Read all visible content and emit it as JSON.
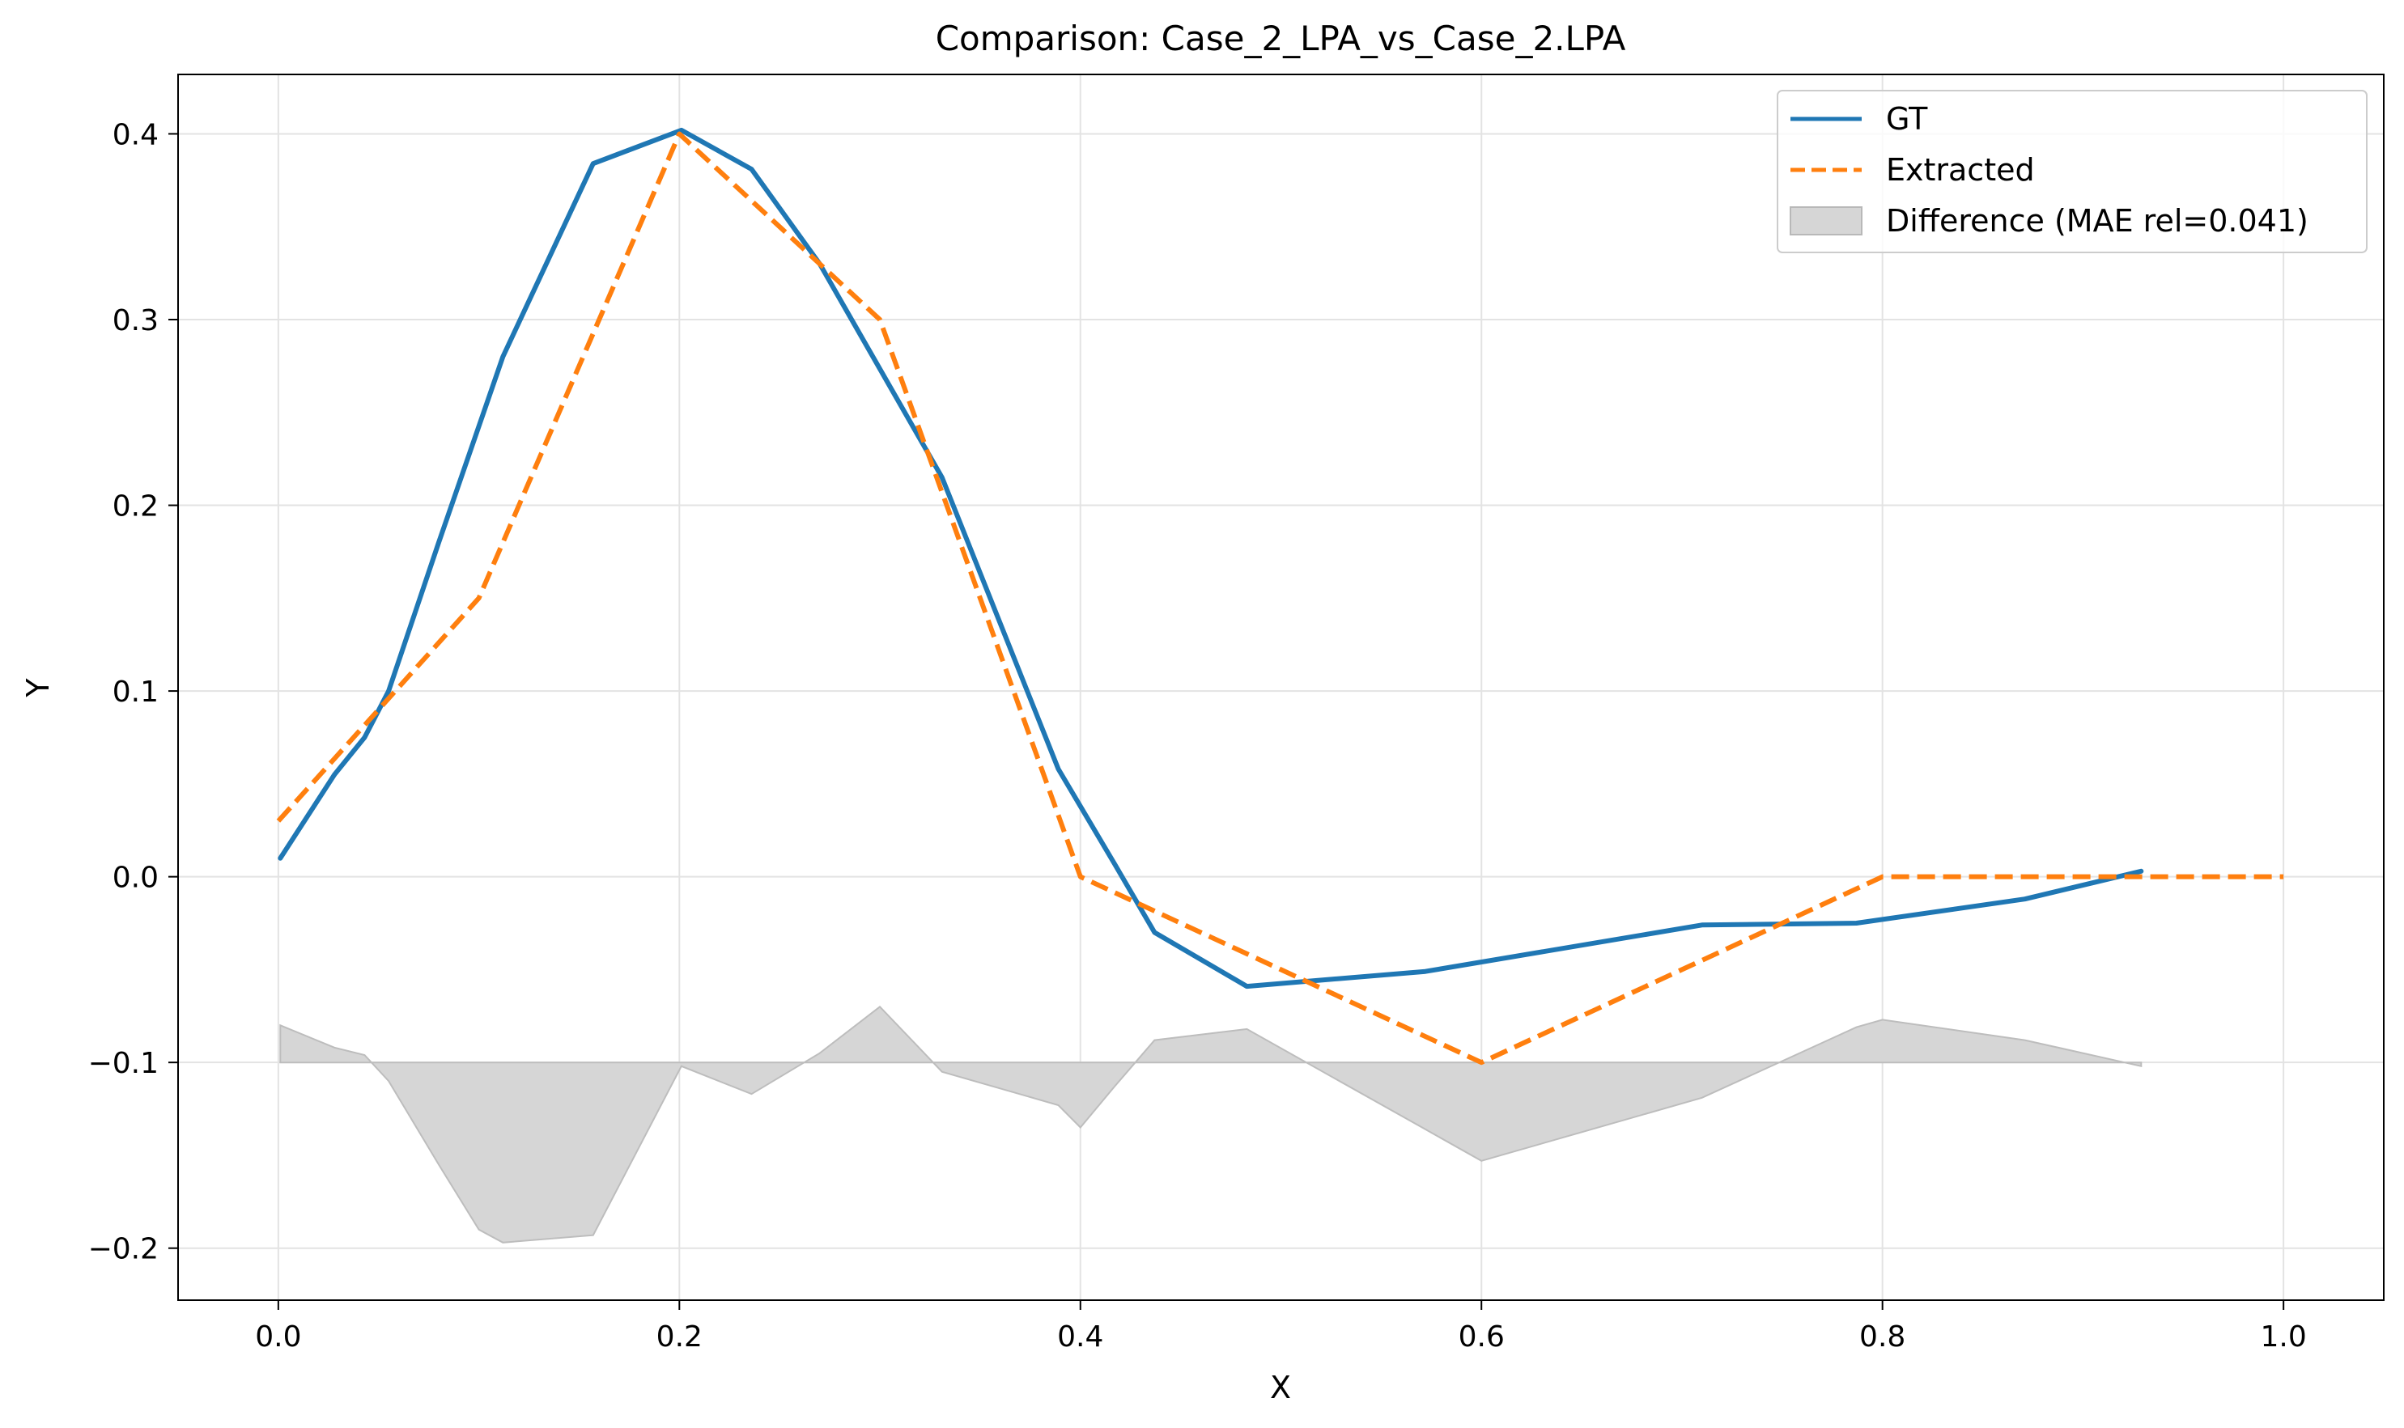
{
  "chart_data": {
    "type": "line",
    "title": "Comparison: Case_2_LPA_vs_Case_2.LPA",
    "xlabel": "X",
    "ylabel": "Y",
    "xlim": [
      -0.05,
      1.05
    ],
    "ylim": [
      -0.228,
      0.432
    ],
    "grid": true,
    "legend_position": "top-right",
    "x_ticks": [
      0.0,
      0.2,
      0.4,
      0.6,
      0.8,
      1.0
    ],
    "x_tick_labels": [
      "0.0",
      "0.2",
      "0.4",
      "0.6",
      "0.8",
      "1.0"
    ],
    "y_ticks": [
      -0.2,
      -0.1,
      0.0,
      0.1,
      0.2,
      0.3,
      0.4
    ],
    "y_tick_labels": [
      "−0.2",
      "−0.1",
      "0.0",
      "0.1",
      "0.2",
      "0.3",
      "0.4"
    ],
    "series": [
      {
        "name": "GT",
        "style": "solid",
        "color": "#1f77b4",
        "x": [
          0.001,
          0.028,
          0.043,
          0.055,
          0.08,
          0.112,
          0.157,
          0.201,
          0.236,
          0.27,
          0.331,
          0.389,
          0.417,
          0.437,
          0.483,
          0.572,
          0.71,
          0.787,
          0.871,
          0.929
        ],
        "y": [
          0.01,
          0.055,
          0.075,
          0.1,
          0.18,
          0.28,
          0.384,
          0.402,
          0.381,
          0.33,
          0.215,
          0.058,
          0.007,
          -0.03,
          -0.059,
          -0.051,
          -0.026,
          -0.025,
          -0.012,
          0.003
        ]
      },
      {
        "name": "Extracted",
        "style": "dashed",
        "color": "#ff7f0e",
        "x": [
          0.0,
          0.1,
          0.2,
          0.3,
          0.4,
          0.5,
          0.6,
          0.7,
          0.8,
          0.9,
          1.0
        ],
        "y": [
          0.03,
          0.15,
          0.4,
          0.3,
          0.0,
          -0.05,
          -0.1,
          -0.05,
          0.0,
          0.0,
          0.0
        ]
      }
    ],
    "difference": {
      "name": "Difference (MAE rel=0.041)",
      "color": "#d6d6d6",
      "baseline": -0.1,
      "x": [
        0.001,
        0.028,
        0.043,
        0.055,
        0.08,
        0.1,
        0.112,
        0.157,
        0.201,
        0.236,
        0.27,
        0.3,
        0.331,
        0.389,
        0.4,
        0.417,
        0.437,
        0.483,
        0.572,
        0.6,
        0.71,
        0.787,
        0.8,
        0.871,
        0.929
      ],
      "y": [
        -0.08,
        -0.092,
        -0.096,
        -0.11,
        -0.155,
        -0.19,
        -0.197,
        -0.193,
        -0.102,
        -0.117,
        -0.095,
        -0.07,
        -0.105,
        -0.123,
        -0.135,
        -0.113,
        -0.088,
        -0.082,
        -0.136,
        -0.153,
        -0.119,
        -0.081,
        -0.077,
        -0.088,
        -0.102
      ]
    }
  }
}
